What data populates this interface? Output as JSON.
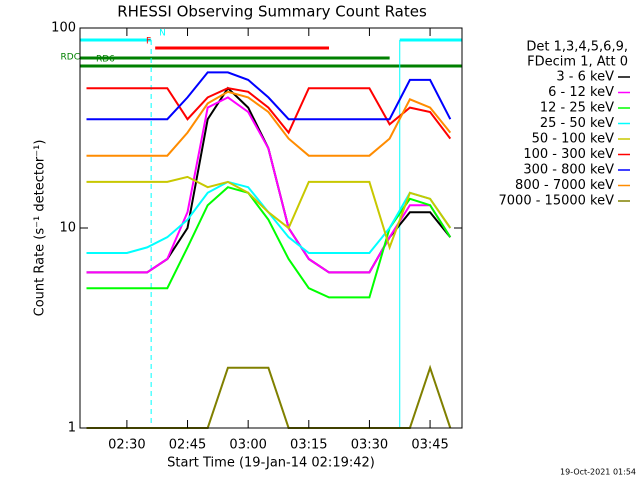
{
  "chart_data": {
    "type": "line",
    "title": "RHESSI Observing Summary Count Rates",
    "xlabel": "Start Time (19-Jan-14 02:19:42)",
    "ylabel": "Count Rate (s⁻¹ detector⁻¹)",
    "footer": "19-Oct-2021 01:54",
    "legend_title": [
      "Det 1,3,4,5,6,9,",
      "FDecim 1, Att 0"
    ],
    "log_y": true,
    "ylim": [
      1,
      100
    ],
    "yticks": [
      1,
      10,
      100
    ],
    "xlim": [
      "02:18:24",
      "03:52:54"
    ],
    "xticks": [
      "02:30",
      "02:45",
      "03:00",
      "03:15",
      "03:30",
      "03:45"
    ],
    "x": [
      "02:20",
      "02:25",
      "02:30",
      "02:35",
      "02:40",
      "02:45",
      "02:50",
      "02:55",
      "03:00",
      "03:05",
      "03:10",
      "03:15",
      "03:20",
      "03:25",
      "03:30",
      "03:35",
      "03:40",
      "03:45",
      "03:50"
    ],
    "series": [
      {
        "name": "3 - 6 keV",
        "color": "#000000",
        "values": [
          6,
          6,
          6,
          6,
          7,
          10,
          35,
          50,
          40,
          25,
          10,
          7,
          6,
          6,
          6,
          9,
          12,
          12,
          9
        ]
      },
      {
        "name": "6 - 12 keV",
        "color": "#ff00ff",
        "values": [
          6,
          6,
          6,
          6,
          7,
          12,
          40,
          45,
          38,
          25,
          10,
          7,
          6,
          6,
          6,
          9,
          13,
          13,
          9
        ]
      },
      {
        "name": "12 - 25 keV",
        "color": "#00ff00",
        "values": [
          5,
          5,
          5,
          5,
          5,
          8,
          13,
          16,
          15,
          11,
          7,
          5,
          4.5,
          4.5,
          4.5,
          10,
          14,
          13,
          9
        ]
      },
      {
        "name": "25 - 50 keV",
        "color": "#00ffff",
        "values": [
          7.5,
          7.5,
          7.5,
          8,
          9,
          11,
          15,
          17,
          16,
          12,
          9,
          7.5,
          7.5,
          7.5,
          7.5,
          10,
          15,
          14,
          10
        ]
      },
      {
        "name": "50 - 100 keV",
        "color": "#c8c800",
        "values": [
          17,
          17,
          17,
          17,
          17,
          18,
          16,
          17,
          15,
          12,
          10,
          17,
          17,
          17,
          17,
          8,
          15,
          14,
          10
        ]
      },
      {
        "name": "100 - 300 keV",
        "color": "#ff0000",
        "values": [
          50,
          50,
          50,
          50,
          50,
          35,
          45,
          50,
          48,
          40,
          30,
          50,
          50,
          50,
          50,
          33,
          40,
          38,
          28
        ]
      },
      {
        "name": "300 - 800 keV",
        "color": "#0000ff",
        "values": [
          35,
          35,
          35,
          35,
          35,
          45,
          60,
          60,
          55,
          45,
          35,
          35,
          35,
          35,
          35,
          35,
          55,
          55,
          35
        ]
      },
      {
        "name": "800 - 7000 keV",
        "color": "#ff8c00",
        "values": [
          23,
          23,
          23,
          23,
          23,
          30,
          42,
          48,
          45,
          38,
          28,
          23,
          23,
          23,
          23,
          28,
          44,
          40,
          30
        ]
      },
      {
        "name": "7000 - 15000 keV",
        "color": "#808000",
        "values": [
          1,
          1,
          1,
          1,
          1,
          1,
          1,
          2,
          2,
          2,
          1,
          1,
          1,
          1,
          1,
          1,
          1,
          2,
          1
        ]
      }
    ],
    "flags": [
      {
        "label": "N",
        "color": "#00ffff",
        "start": "02:18:24",
        "end": "02:36:00"
      },
      {
        "label": "N",
        "color": "#00ffff",
        "start": "03:37:30",
        "end": "03:52:54"
      },
      {
        "label": "F",
        "color": "#ff0000",
        "start": "02:37:00",
        "end": "03:20:00"
      },
      {
        "label": "RDC",
        "color": "#008000",
        "start": "02:18:24",
        "end": "03:35:00"
      },
      {
        "label": "RD6",
        "color": "#008000",
        "start": "02:18:24",
        "end": "03:52:54"
      }
    ]
  }
}
